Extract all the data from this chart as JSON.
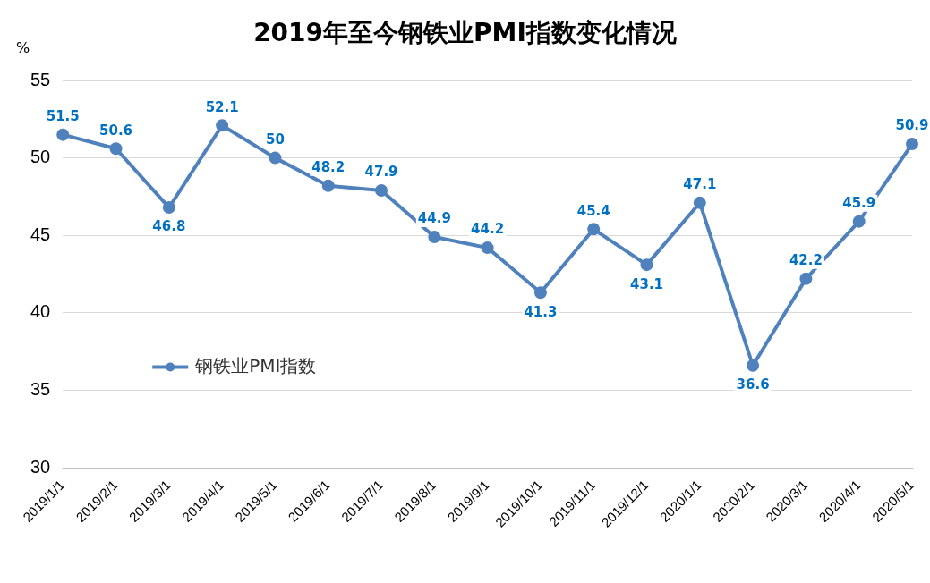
{
  "chart_data": {
    "type": "line",
    "title": "2019年至今钢铁业PMI指数变化情况",
    "ylabel": "%",
    "categories": [
      "2019/1/1",
      "2019/2/1",
      "2019/3/1",
      "2019/4/1",
      "2019/5/1",
      "2019/6/1",
      "2019/7/1",
      "2019/8/1",
      "2019/9/1",
      "2019/10/1",
      "2019/11/1",
      "2019/12/1",
      "2020/1/1",
      "2020/2/1",
      "2020/3/1",
      "2020/4/1",
      "2020/5/1"
    ],
    "series": [
      {
        "name": "钢铁业PMI指数",
        "color": "#4f81bd",
        "values": [
          51.5,
          50.6,
          46.8,
          52.1,
          50,
          48.2,
          47.9,
          44.9,
          44.2,
          41.3,
          45.4,
          43.1,
          47.1,
          36.6,
          42.2,
          45.9,
          50.9
        ]
      }
    ],
    "ylim": [
      30,
      55
    ],
    "yticks": [
      30,
      35,
      40,
      45,
      50,
      55
    ],
    "grid": "y",
    "legend": "left",
    "marker": "circle",
    "line_style": "solid",
    "data_labels": true
  }
}
